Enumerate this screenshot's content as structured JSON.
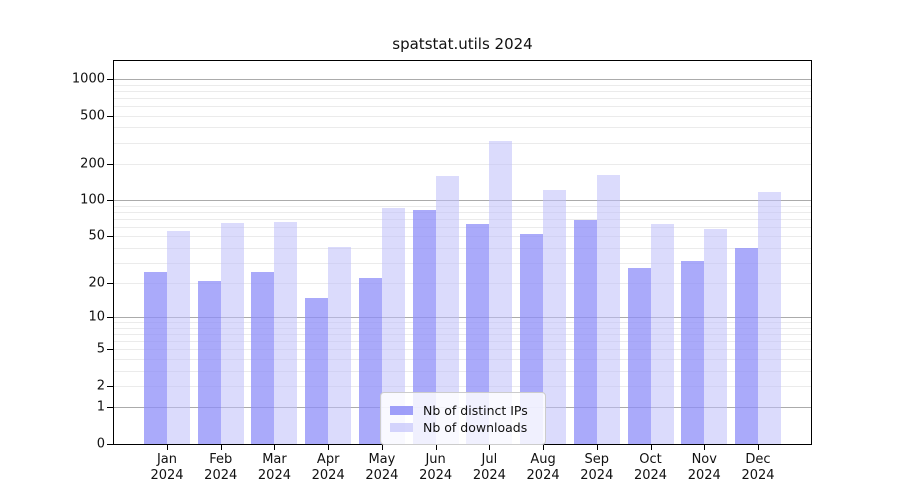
{
  "chart_data": {
    "type": "bar",
    "title": "spatstat.utils 2024",
    "scale": "log10(value+1)",
    "categories": [
      "Jan",
      "Feb",
      "Mar",
      "Apr",
      "May",
      "Jun",
      "Jul",
      "Aug",
      "Sep",
      "Oct",
      "Nov",
      "Dec"
    ],
    "x_year": "2024",
    "series": [
      {
        "name": "Nb of distinct IPs",
        "color": "#aaaaf6",
        "values": [
          25,
          21,
          25,
          15,
          22,
          83,
          63,
          52,
          69,
          27,
          31,
          40
        ]
      },
      {
        "name": "Nb of downloads",
        "color": "#dcdcfa",
        "values": [
          56,
          65,
          66,
          41,
          87,
          160,
          310,
          122,
          162,
          63,
          58,
          117
        ]
      }
    ],
    "yticks": [
      0,
      1,
      2,
      5,
      10,
      20,
      50,
      100,
      200,
      500,
      1000
    ],
    "major_gridlines": [
      1,
      10,
      100,
      1000
    ],
    "minor_gridlines": [
      2,
      3,
      4,
      5,
      6,
      7,
      8,
      9,
      20,
      30,
      40,
      50,
      60,
      70,
      80,
      90,
      200,
      300,
      400,
      500,
      600,
      700,
      800,
      900
    ],
    "ylim": [
      0,
      1410
    ],
    "grid": true,
    "legend_position": "bottom-center",
    "colors": {
      "axis": "#000000",
      "major_grid": "#ababab",
      "minor_grid": "#ebebeb"
    }
  }
}
